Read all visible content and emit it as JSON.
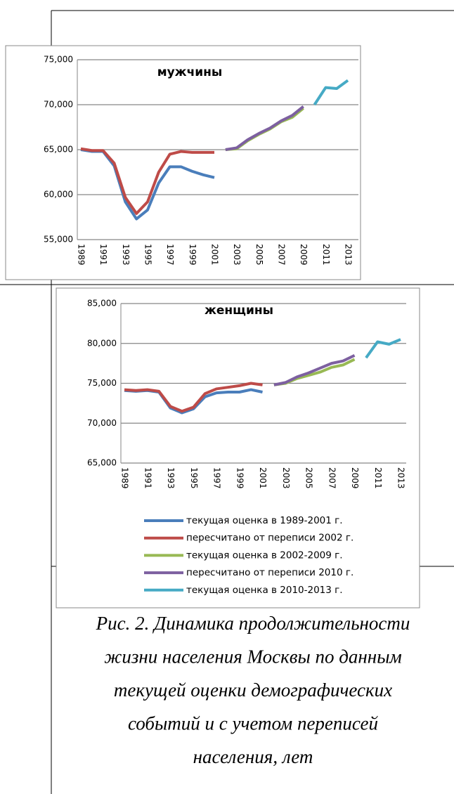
{
  "chart_data": [
    {
      "type": "line",
      "title": "мужчины",
      "categories": [
        "1989",
        null,
        "1991",
        null,
        "1993",
        null,
        "1995",
        null,
        "1997",
        null,
        "1999",
        null,
        "2001",
        null,
        "2003",
        null,
        "2005",
        null,
        "2007",
        null,
        "2009",
        null,
        "2011",
        null,
        "2013"
      ],
      "ylim": [
        55,
        75
      ],
      "yticks": [
        {
          "value": 55,
          "label": "55,000"
        },
        {
          "value": 60,
          "label": "60,000"
        },
        {
          "value": 65,
          "label": "65,000"
        },
        {
          "value": 70,
          "label": "70,000"
        },
        {
          "value": 75,
          "label": "75,000"
        }
      ],
      "grid": true,
      "series": [
        {
          "color": "#4a7ebb",
          "values": [
            65.0,
            64.8,
            64.8,
            63.2,
            59.2,
            57.3,
            58.3,
            61.3,
            63.1,
            63.1,
            62.6,
            62.2,
            61.9,
            null,
            null,
            null,
            null,
            null,
            null,
            null,
            null,
            null,
            null,
            null,
            null
          ]
        },
        {
          "color": "#be4b48",
          "values": [
            65.1,
            64.9,
            64.9,
            63.5,
            59.7,
            57.9,
            59.2,
            62.5,
            64.5,
            64.8,
            64.7,
            64.7,
            64.7,
            null,
            null,
            null,
            null,
            null,
            null,
            null,
            null,
            null,
            null,
            null,
            null
          ]
        },
        {
          "color": "#98b954",
          "values": [
            null,
            null,
            null,
            null,
            null,
            null,
            null,
            null,
            null,
            null,
            null,
            null,
            null,
            65.0,
            65.1,
            66.0,
            66.7,
            67.3,
            68.1,
            68.6,
            69.6,
            null,
            null,
            null,
            null
          ]
        },
        {
          "color": "#7d60a0",
          "values": [
            null,
            null,
            null,
            null,
            null,
            null,
            null,
            null,
            null,
            null,
            null,
            null,
            null,
            65.0,
            65.2,
            66.1,
            66.8,
            67.4,
            68.2,
            68.8,
            69.8,
            null,
            null,
            null,
            null
          ]
        },
        {
          "color": "#46aac5",
          "values": [
            null,
            null,
            null,
            null,
            null,
            null,
            null,
            null,
            null,
            null,
            null,
            null,
            null,
            null,
            null,
            null,
            null,
            null,
            null,
            null,
            null,
            70.0,
            71.9,
            71.8,
            72.7
          ]
        }
      ]
    },
    {
      "type": "line",
      "title": "женщины",
      "categories": [
        "1989",
        null,
        "1991",
        null,
        "1993",
        null,
        "1995",
        null,
        "1997",
        null,
        "1999",
        null,
        "2001",
        null,
        "2003",
        null,
        "2005",
        null,
        "2007",
        null,
        "2009",
        null,
        "2011",
        null,
        "2013"
      ],
      "ylim": [
        65,
        85
      ],
      "yticks": [
        {
          "value": 65,
          "label": "65,000"
        },
        {
          "value": 70,
          "label": "70,000"
        },
        {
          "value": 75,
          "label": "75,000"
        },
        {
          "value": 80,
          "label": "80,000"
        },
        {
          "value": 85,
          "label": "85,000"
        }
      ],
      "grid": true,
      "legend": "bottom",
      "series": [
        {
          "name": "текущая оценка в 1989-2001 г.",
          "color": "#4a7ebb",
          "values": [
            74.1,
            74.0,
            74.1,
            73.9,
            71.9,
            71.3,
            71.8,
            73.3,
            73.8,
            73.9,
            73.9,
            74.2,
            73.9,
            null,
            null,
            null,
            null,
            null,
            null,
            null,
            null,
            null,
            null,
            null,
            null
          ]
        },
        {
          "name": "пересчитано от переписи 2002 г.",
          "color": "#be4b48",
          "values": [
            74.2,
            74.1,
            74.2,
            74.0,
            72.1,
            71.5,
            72.0,
            73.7,
            74.3,
            74.5,
            74.7,
            75.0,
            74.8,
            null,
            null,
            null,
            null,
            null,
            null,
            null,
            null,
            null,
            null,
            null,
            null
          ]
        },
        {
          "name": "текущая оценка в 2002-2009 г.",
          "color": "#98b954",
          "values": [
            null,
            null,
            null,
            null,
            null,
            null,
            null,
            null,
            null,
            null,
            null,
            null,
            null,
            74.8,
            75.0,
            75.6,
            76.0,
            76.4,
            77.0,
            77.3,
            78.0,
            null,
            null,
            null,
            null
          ]
        },
        {
          "name": "пересчитано от переписи 2010 г.",
          "color": "#7d60a0",
          "values": [
            null,
            null,
            null,
            null,
            null,
            null,
            null,
            null,
            null,
            null,
            null,
            null,
            null,
            74.8,
            75.1,
            75.8,
            76.3,
            76.9,
            77.5,
            77.8,
            78.5,
            null,
            null,
            null,
            null
          ]
        },
        {
          "name": "текущая оценка в 2010-2013 г.",
          "color": "#46aac5",
          "values": [
            null,
            null,
            null,
            null,
            null,
            null,
            null,
            null,
            null,
            null,
            null,
            null,
            null,
            null,
            null,
            null,
            null,
            null,
            null,
            null,
            null,
            78.2,
            80.2,
            79.9,
            80.5
          ]
        }
      ]
    }
  ],
  "caption": {
    "lines": [
      "Рис. 2. Динамика продолжительности",
      "жизни населения Москвы по данным",
      "текущей оценки демографических",
      "событий и с учетом переписей",
      "населения, лет"
    ]
  }
}
